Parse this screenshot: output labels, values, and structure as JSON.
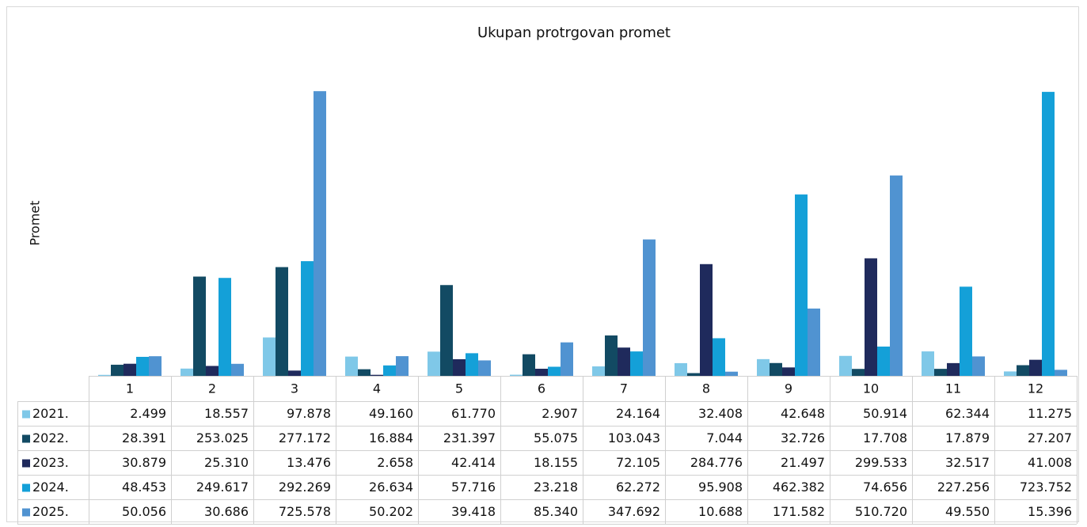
{
  "chart_data": {
    "type": "bar",
    "title": "Ukupan protrgovan promet",
    "y_label": "Promet",
    "categories": [
      "1",
      "2",
      "3",
      "4",
      "5",
      "6",
      "7",
      "8",
      "9",
      "10",
      "11",
      "12"
    ],
    "ylim": [
      0,
      730000
    ],
    "series": [
      {
        "name": "2021.",
        "color": "#7fc8e8",
        "values": [
          2499,
          18557,
          97878,
          49160,
          61770,
          2907,
          24164,
          32408,
          42648,
          50914,
          62344,
          11275
        ],
        "value_labels": [
          "2.499",
          "18.557",
          "97.878",
          "49.160",
          "61.770",
          "2.907",
          "24.164",
          "32.408",
          "42.648",
          "50.914",
          "62.344",
          "11.275"
        ]
      },
      {
        "name": "2022.",
        "color": "#124a63",
        "values": [
          28391,
          253025,
          277172,
          16884,
          231397,
          55075,
          103043,
          7044,
          32726,
          17708,
          17879,
          27207
        ],
        "value_labels": [
          "28.391",
          "253.025",
          "277.172",
          "16.884",
          "231.397",
          "55.075",
          "103.043",
          "7.044",
          "32.726",
          "17.708",
          "17.879",
          "27.207"
        ]
      },
      {
        "name": "2023.",
        "color": "#1f2a5c",
        "values": [
          30879,
          25310,
          13476,
          2658,
          42414,
          18155,
          72105,
          284776,
          21497,
          299533,
          32517,
          41008
        ],
        "value_labels": [
          "30.879",
          "25.310",
          "13.476",
          "2.658",
          "42.414",
          "18.155",
          "72.105",
          "284.776",
          "21.497",
          "299.533",
          "32.517",
          "41.008"
        ]
      },
      {
        "name": "2024.",
        "color": "#14a0d8",
        "values": [
          48453,
          249617,
          292269,
          26634,
          57716,
          23218,
          62272,
          95908,
          462382,
          74656,
          227256,
          723752
        ],
        "value_labels": [
          "48.453",
          "249.617",
          "292.269",
          "26.634",
          "57.716",
          "23.218",
          "62.272",
          "95.908",
          "462.382",
          "74.656",
          "227.256",
          "723.752"
        ]
      },
      {
        "name": "2025.",
        "color": "#5093d1",
        "values": [
          50056,
          30686,
          725578,
          50202,
          39418,
          85340,
          347692,
          10688,
          171582,
          510720,
          49550,
          15396
        ],
        "value_labels": [
          "50.056",
          "30.686",
          "725.578",
          "50.202",
          "39.418",
          "85.340",
          "347.692",
          "10.688",
          "171.582",
          "510.720",
          "49.550",
          "15.396"
        ]
      }
    ]
  }
}
